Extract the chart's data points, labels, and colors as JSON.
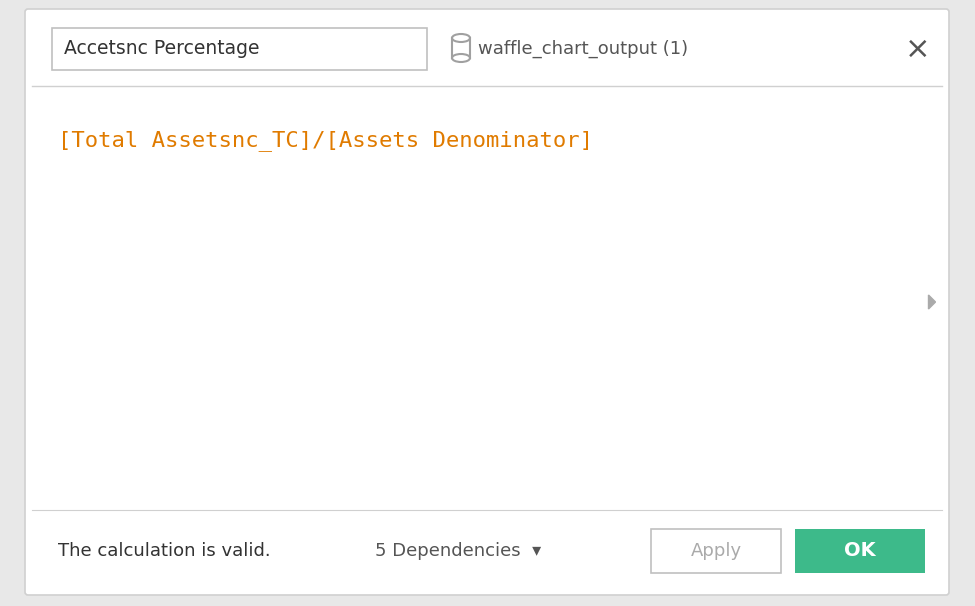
{
  "background_color": "#ffffff",
  "dialog_border_color": "#d0d0d0",
  "dialog_bg": "#ffffff",
  "title_field_text": "Accetsnc Percentage",
  "title_field_border": "#c0c0c0",
  "icon_color": "#a0a0a0",
  "datasource_text": "waffle_chart_output (1)",
  "datasource_color": "#555555",
  "close_x_color": "#555555",
  "divider_color": "#d0d0d0",
  "formula_text_part1": "[Total Assetsnc_TC]",
  "formula_slash": "/",
  "formula_text_part2": "[Assets Denominator]",
  "formula_color": "#e07b00",
  "formula_fontsize": 16,
  "arrow_color": "#aaaaaa",
  "footer_text": "The calculation is valid.",
  "footer_color": "#333333",
  "dependencies_text": "5 Dependencies",
  "dependencies_color": "#555555",
  "apply_btn_text": "Apply",
  "apply_btn_text_color": "#aaaaaa",
  "apply_btn_border": "#c0c0c0",
  "ok_btn_text": "OK",
  "ok_btn_bg": "#3dba8a",
  "ok_btn_text_color": "#ffffff",
  "outer_bg": "#e8e8e8"
}
